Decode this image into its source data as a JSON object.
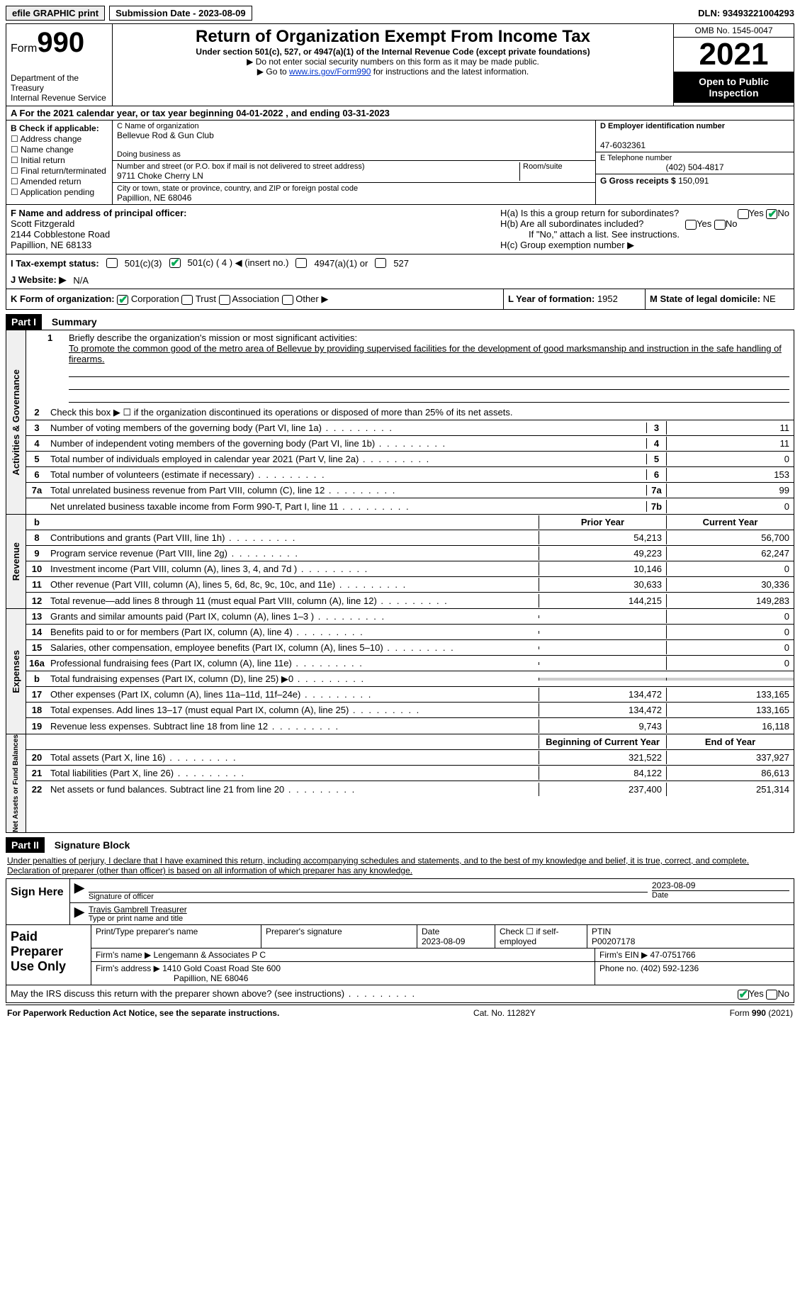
{
  "topbar": {
    "efile": "efile GRAPHIC print",
    "sub_label": "Submission Date - 2023-08-09",
    "dln": "DLN: 93493221004293"
  },
  "header": {
    "form_prefix": "Form",
    "form_num": "990",
    "dept": "Department of the Treasury",
    "irs": "Internal Revenue Service",
    "title": "Return of Organization Exempt From Income Tax",
    "sub": "Under section 501(c), 527, or 4947(a)(1) of the Internal Revenue Code (except private foundations)",
    "note1": "▶ Do not enter social security numbers on this form as it may be made public.",
    "note2_pre": "▶ Go to ",
    "note2_link": "www.irs.gov/Form990",
    "note2_post": " for instructions and the latest information.",
    "omb": "OMB No. 1545-0047",
    "year": "2021",
    "pub": "Open to Public Inspection"
  },
  "lineA": "A For the 2021 calendar year, or tax year beginning 04-01-2022    , and ending 03-31-2023",
  "sectionB": {
    "label": "B Check if applicable:",
    "items": [
      "Address change",
      "Name change",
      "Initial return",
      "Final return/terminated",
      "Amended return",
      "Application pending"
    ]
  },
  "sectionC": {
    "name_lbl": "C Name of organization",
    "name": "Bellevue Rod & Gun Club",
    "dba_lbl": "Doing business as",
    "dba": "",
    "street_lbl": "Number and street (or P.O. box if mail is not delivered to street address)",
    "room_lbl": "Room/suite",
    "street": "9711 Choke Cherry LN",
    "city_lbl": "City or town, state or province, country, and ZIP or foreign postal code",
    "city": "Papillion, NE  68046"
  },
  "sectionD": {
    "ein_lbl": "D Employer identification number",
    "ein": "47-6032361",
    "tel_lbl": "E Telephone number",
    "tel": "(402) 504-4817",
    "gross_lbl": "G Gross receipts $",
    "gross": "150,091"
  },
  "sectionF": {
    "lbl": "F  Name and address of principal officer:",
    "name": "Scott Fitzgerald",
    "addr1": "2144 Cobblestone Road",
    "addr2": "Papillion, NE  68133"
  },
  "sectionH": {
    "ha": "H(a)  Is this a group return for subordinates?",
    "hb": "H(b)  Are all subordinates included?",
    "hb_note": "If \"No,\" attach a list. See instructions.",
    "hc": "H(c)  Group exemption number ▶"
  },
  "lineI": {
    "lbl": "I    Tax-exempt status:",
    "o1": "501(c)(3)",
    "o2": "501(c) ( 4 ) ◀ (insert no.)",
    "o3": "4947(a)(1) or",
    "o4": "527"
  },
  "lineJ": {
    "lbl": "J   Website: ▶",
    "val": "N/A"
  },
  "lineK": {
    "lbl": "K Form of organization:",
    "o1": "Corporation",
    "o2": "Trust",
    "o3": "Association",
    "o4": "Other ▶",
    "l_lbl": "L Year of formation:",
    "l_val": "1952",
    "m_lbl": "M State of legal domicile:",
    "m_val": "NE"
  },
  "part1": {
    "hdr": "Part I",
    "title": "Summary",
    "mission_lbl": "Briefly describe the organization's mission or most significant activities:",
    "mission": "To promote the common good of the metro area of Bellevue by providing supervised facilities for the development of good marksmanship and instruction in the safe handling of firearms.",
    "line2": "Check this box ▶ ☐  if the organization discontinued its operations or disposed of more than 25% of its net assets.",
    "rows_gov": [
      {
        "n": "3",
        "t": "Number of voting members of the governing body (Part VI, line 1a)",
        "cn": "3",
        "v": "11"
      },
      {
        "n": "4",
        "t": "Number of independent voting members of the governing body (Part VI, line 1b)",
        "cn": "4",
        "v": "11"
      },
      {
        "n": "5",
        "t": "Total number of individuals employed in calendar year 2021 (Part V, line 2a)",
        "cn": "5",
        "v": "0"
      },
      {
        "n": "6",
        "t": "Total number of volunteers (estimate if necessary)",
        "cn": "6",
        "v": "153"
      },
      {
        "n": "7a",
        "t": "Total unrelated business revenue from Part VIII, column (C), line 12",
        "cn": "7a",
        "v": "99"
      },
      {
        "n": "",
        "t": "Net unrelated business taxable income from Form 990-T, Part I, line 11",
        "cn": "7b",
        "v": "0"
      }
    ],
    "col_hdr": {
      "b": "b",
      "py": "Prior Year",
      "cy": "Current Year"
    },
    "rows_rev": [
      {
        "n": "8",
        "t": "Contributions and grants (Part VIII, line 1h)",
        "py": "54,213",
        "cy": "56,700"
      },
      {
        "n": "9",
        "t": "Program service revenue (Part VIII, line 2g)",
        "py": "49,223",
        "cy": "62,247"
      },
      {
        "n": "10",
        "t": "Investment income (Part VIII, column (A), lines 3, 4, and 7d )",
        "py": "10,146",
        "cy": "0"
      },
      {
        "n": "11",
        "t": "Other revenue (Part VIII, column (A), lines 5, 6d, 8c, 9c, 10c, and 11e)",
        "py": "30,633",
        "cy": "30,336"
      },
      {
        "n": "12",
        "t": "Total revenue—add lines 8 through 11 (must equal Part VIII, column (A), line 12)",
        "py": "144,215",
        "cy": "149,283"
      }
    ],
    "rows_exp": [
      {
        "n": "13",
        "t": "Grants and similar amounts paid (Part IX, column (A), lines 1–3 )",
        "py": "",
        "cy": "0"
      },
      {
        "n": "14",
        "t": "Benefits paid to or for members (Part IX, column (A), line 4)",
        "py": "",
        "cy": "0"
      },
      {
        "n": "15",
        "t": "Salaries, other compensation, employee benefits (Part IX, column (A), lines 5–10)",
        "py": "",
        "cy": "0"
      },
      {
        "n": "16a",
        "t": "Professional fundraising fees (Part IX, column (A), line 11e)",
        "py": "",
        "cy": "0"
      },
      {
        "n": "b",
        "t": "Total fundraising expenses (Part IX, column (D), line 25) ▶0",
        "py": "GRAY",
        "cy": "GRAY"
      },
      {
        "n": "17",
        "t": "Other expenses (Part IX, column (A), lines 11a–11d, 11f–24e)",
        "py": "134,472",
        "cy": "133,165"
      },
      {
        "n": "18",
        "t": "Total expenses. Add lines 13–17 (must equal Part IX, column (A), line 25)",
        "py": "134,472",
        "cy": "133,165"
      },
      {
        "n": "19",
        "t": "Revenue less expenses. Subtract line 18 from line 12",
        "py": "9,743",
        "cy": "16,118"
      }
    ],
    "col_hdr2": {
      "py": "Beginning of Current Year",
      "cy": "End of Year"
    },
    "rows_na": [
      {
        "n": "20",
        "t": "Total assets (Part X, line 16)",
        "py": "321,522",
        "cy": "337,927"
      },
      {
        "n": "21",
        "t": "Total liabilities (Part X, line 26)",
        "py": "84,122",
        "cy": "86,613"
      },
      {
        "n": "22",
        "t": "Net assets or fund balances. Subtract line 21 from line 20",
        "py": "237,400",
        "cy": "251,314"
      }
    ],
    "side_labels": {
      "gov": "Activities & Governance",
      "rev": "Revenue",
      "exp": "Expenses",
      "na": "Net Assets or Fund Balances"
    }
  },
  "part2": {
    "hdr": "Part II",
    "title": "Signature Block",
    "decl": "Under penalties of perjury, I declare that I have examined this return, including accompanying schedules and statements, and to the best of my knowledge and belief, it is true, correct, and complete. Declaration of preparer (other than officer) is based on all information of which preparer has any knowledge.",
    "sign_here": "Sign Here",
    "sig_officer": "Signature of officer",
    "sig_date": "2023-08-09",
    "date_lbl": "Date",
    "officer_name": "Travis Gambrell  Treasurer",
    "type_lbl": "Type or print name and title"
  },
  "preparer": {
    "lbl": "Paid Preparer Use Only",
    "name_lbl": "Print/Type preparer's name",
    "sig_lbl": "Preparer's signature",
    "date_lbl": "Date",
    "date": "2023-08-09",
    "self_lbl": "Check ☐ if self-employed",
    "ptin_lbl": "PTIN",
    "ptin": "P00207178",
    "firm_name_lbl": "Firm's name     ▶",
    "firm_name": "Lengemann & Associates P C",
    "firm_ein_lbl": "Firm's EIN ▶",
    "firm_ein": "47-0751766",
    "firm_addr_lbl": "Firm's address ▶",
    "firm_addr1": "1410 Gold Coast Road Ste 600",
    "firm_addr2": "Papillion, NE  68046",
    "phone_lbl": "Phone no.",
    "phone": "(402) 592-1236"
  },
  "discuss": "May the IRS discuss this return with the preparer shown above? (see instructions)",
  "footer": {
    "pra": "For Paperwork Reduction Act Notice, see the separate instructions.",
    "cat": "Cat. No. 11282Y",
    "form": "Form 990 (2021)"
  },
  "yes": "Yes",
  "no": "No"
}
